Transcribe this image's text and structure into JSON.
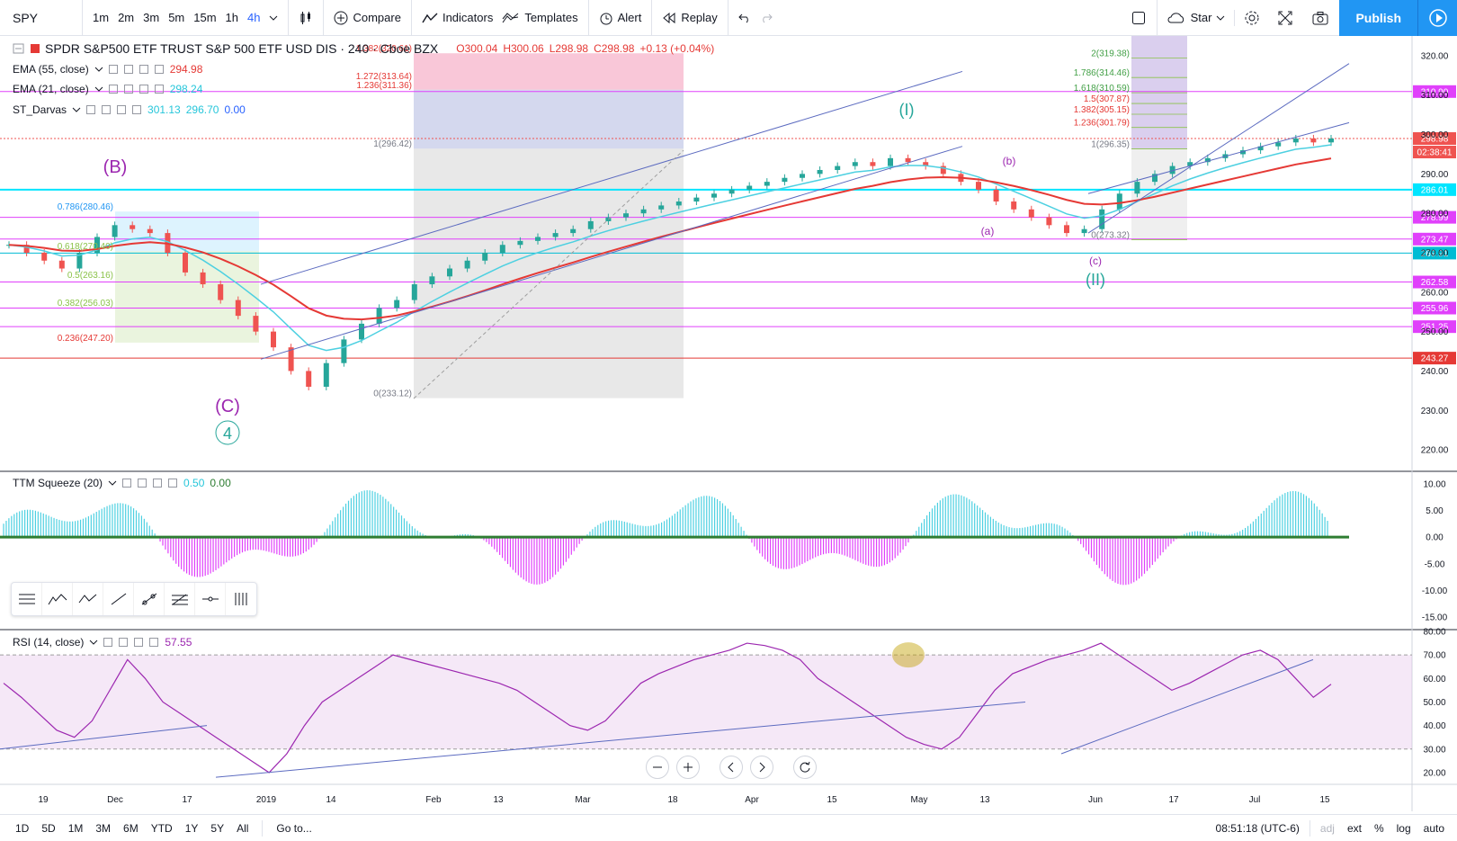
{
  "toolbar": {
    "symbol": "SPY",
    "intervals": [
      "1m",
      "2m",
      "3m",
      "5m",
      "15m",
      "1h",
      "4h"
    ],
    "active_interval": "4h",
    "compare": "Compare",
    "indicators": "Indicators",
    "templates": "Templates",
    "alert": "Alert",
    "replay": "Replay",
    "star": "Star",
    "publish": "Publish"
  },
  "legend": {
    "title": "SPDR S&P500 ETF TRUST S&P 500 ETF USD DIS · 240 · Cboe BZX",
    "ohlc": {
      "o": "O300.04",
      "h": "H300.06",
      "l": "L298.98",
      "c": "C298.98",
      "chg": "+0.13 (+0.04%)"
    },
    "ema55": {
      "label": "EMA (55, close)",
      "value": "294.98"
    },
    "ema21": {
      "label": "EMA (21, close)",
      "value": "298.24"
    },
    "darvas": {
      "label": "ST_Darvas",
      "v1": "301.13",
      "v2": "296.70",
      "v3": "0.00"
    },
    "ttm": {
      "label": "TTM Squeeze (20)",
      "v1": "0.50",
      "v2": "0.00"
    },
    "rsi": {
      "label": "RSI (14, close)",
      "value": "57.55"
    }
  },
  "colors": {
    "ema55": "#e53935",
    "ema21": "#4dd0e1",
    "up": "#26a69a",
    "down": "#ef5350",
    "magenta": "#e040fb",
    "cyan": "#00e5ff",
    "rsi": "#9c27b0"
  },
  "chart_data": [
    {
      "type": "line",
      "title": "SPDR S&P500 ETF TRUST S&P 500 ETF USD DIS · 240 · Cboe BZX",
      "xlabel": "",
      "ylabel": "",
      "ylim": [
        215,
        325
      ],
      "x_ticks": [
        "19",
        "Dec",
        "17",
        "2019",
        "14",
        "Feb",
        "13",
        "Mar",
        "18",
        "Apr",
        "15",
        "May",
        "13",
        "Jun",
        "17",
        "Jul",
        "15"
      ],
      "y_ticks": [
        220,
        230,
        240,
        250,
        260,
        270,
        280,
        290,
        300,
        310,
        320
      ],
      "series": [
        {
          "name": "Price",
          "values": [
            272,
            270,
            268,
            266,
            270,
            274,
            277,
            276,
            275,
            270,
            265,
            262,
            258,
            254,
            250,
            246,
            240,
            236,
            242,
            248,
            252,
            256,
            258,
            262,
            264,
            266,
            268,
            270,
            272,
            273,
            274,
            275,
            276,
            278,
            279,
            280,
            281,
            282,
            283,
            284,
            285,
            286,
            287,
            288,
            289,
            290,
            291,
            292,
            293,
            292,
            294,
            293,
            292,
            290,
            288,
            286,
            283,
            281,
            279,
            277,
            275,
            276,
            281,
            285,
            288,
            290,
            292,
            293,
            294,
            295,
            296,
            297,
            298,
            299,
            298,
            298.98
          ]
        }
      ],
      "horizontal_levels": [
        {
          "value": 310.9,
          "label": "310.90",
          "color": "#e040fb"
        },
        {
          "value": 298.98,
          "label": "298.98",
          "color": "#ef5350"
        },
        {
          "value": 286.01,
          "label": "286.01",
          "color": "#00e5ff"
        },
        {
          "value": 278.99,
          "label": "278.99",
          "color": "#e040fb"
        },
        {
          "value": 273.47,
          "label": "273.47",
          "color": "#e040fb"
        },
        {
          "value": 269.91,
          "label": "269.91",
          "color": "#00bcd4"
        },
        {
          "value": 262.58,
          "label": "262.58",
          "color": "#e040fb"
        },
        {
          "value": 255.96,
          "label": "255.96",
          "color": "#e040fb"
        },
        {
          "value": 251.25,
          "label": "251.25",
          "color": "#e040fb"
        },
        {
          "value": 243.27,
          "label": "243.27",
          "color": "#e53935"
        }
      ],
      "countdown": "02:38:41",
      "fib_left": [
        "0.786(280.46)",
        "0.618(270.40)",
        "0.5(263.16)",
        "0.382(256.03)",
        "0.236(247.20)"
      ],
      "fib_mid": [
        "1.382(320.61)",
        "1.272(313.64)",
        "1.236(311.36)",
        "1(296.42)",
        "0(233.12)"
      ],
      "fib_right": [
        "2(319.38)",
        "1.786(314.46)",
        "1.618(310.59)",
        "1.5(307.87)",
        "1.382(305.15)",
        "1.236(301.79)",
        "1(296.35)",
        "0(273.32)"
      ],
      "wave_labels": [
        "(B)",
        "(C)",
        "4",
        "(I)",
        "(II)",
        "(a)",
        "(b)",
        "(c)"
      ]
    },
    {
      "type": "bar",
      "title": "TTM Squeeze (20)",
      "ylim": [
        -17,
        12
      ],
      "y_ticks": [
        10,
        5,
        0,
        -5,
        -10,
        -15
      ]
    },
    {
      "type": "line",
      "title": "RSI (14, close)",
      "ylim": [
        15,
        80
      ],
      "y_ticks": [
        80,
        70,
        60,
        50,
        40,
        30,
        20
      ],
      "series": [
        {
          "name": "RSI",
          "values": [
            58,
            52,
            45,
            38,
            35,
            42,
            55,
            68,
            60,
            50,
            45,
            40,
            35,
            30,
            25,
            20,
            28,
            40,
            50,
            55,
            60,
            65,
            70,
            68,
            66,
            64,
            62,
            60,
            58,
            55,
            50,
            45,
            40,
            38,
            42,
            50,
            58,
            62,
            65,
            68,
            70,
            72,
            75,
            74,
            72,
            68,
            60,
            55,
            50,
            45,
            40,
            35,
            32,
            30,
            35,
            45,
            55,
            62,
            65,
            68,
            70,
            72,
            75,
            70,
            65,
            60,
            55,
            58,
            62,
            66,
            70,
            72,
            68,
            60,
            52,
            57.55
          ]
        }
      ]
    }
  ],
  "bottombar": {
    "ranges": [
      "1D",
      "5D",
      "1M",
      "3M",
      "6M",
      "YTD",
      "1Y",
      "5Y",
      "All"
    ],
    "goto": "Go to...",
    "time": "08:51:18 (UTC-6)",
    "adj": "adj",
    "ext": "ext",
    "pct": "%",
    "log": "log",
    "auto": "auto"
  }
}
